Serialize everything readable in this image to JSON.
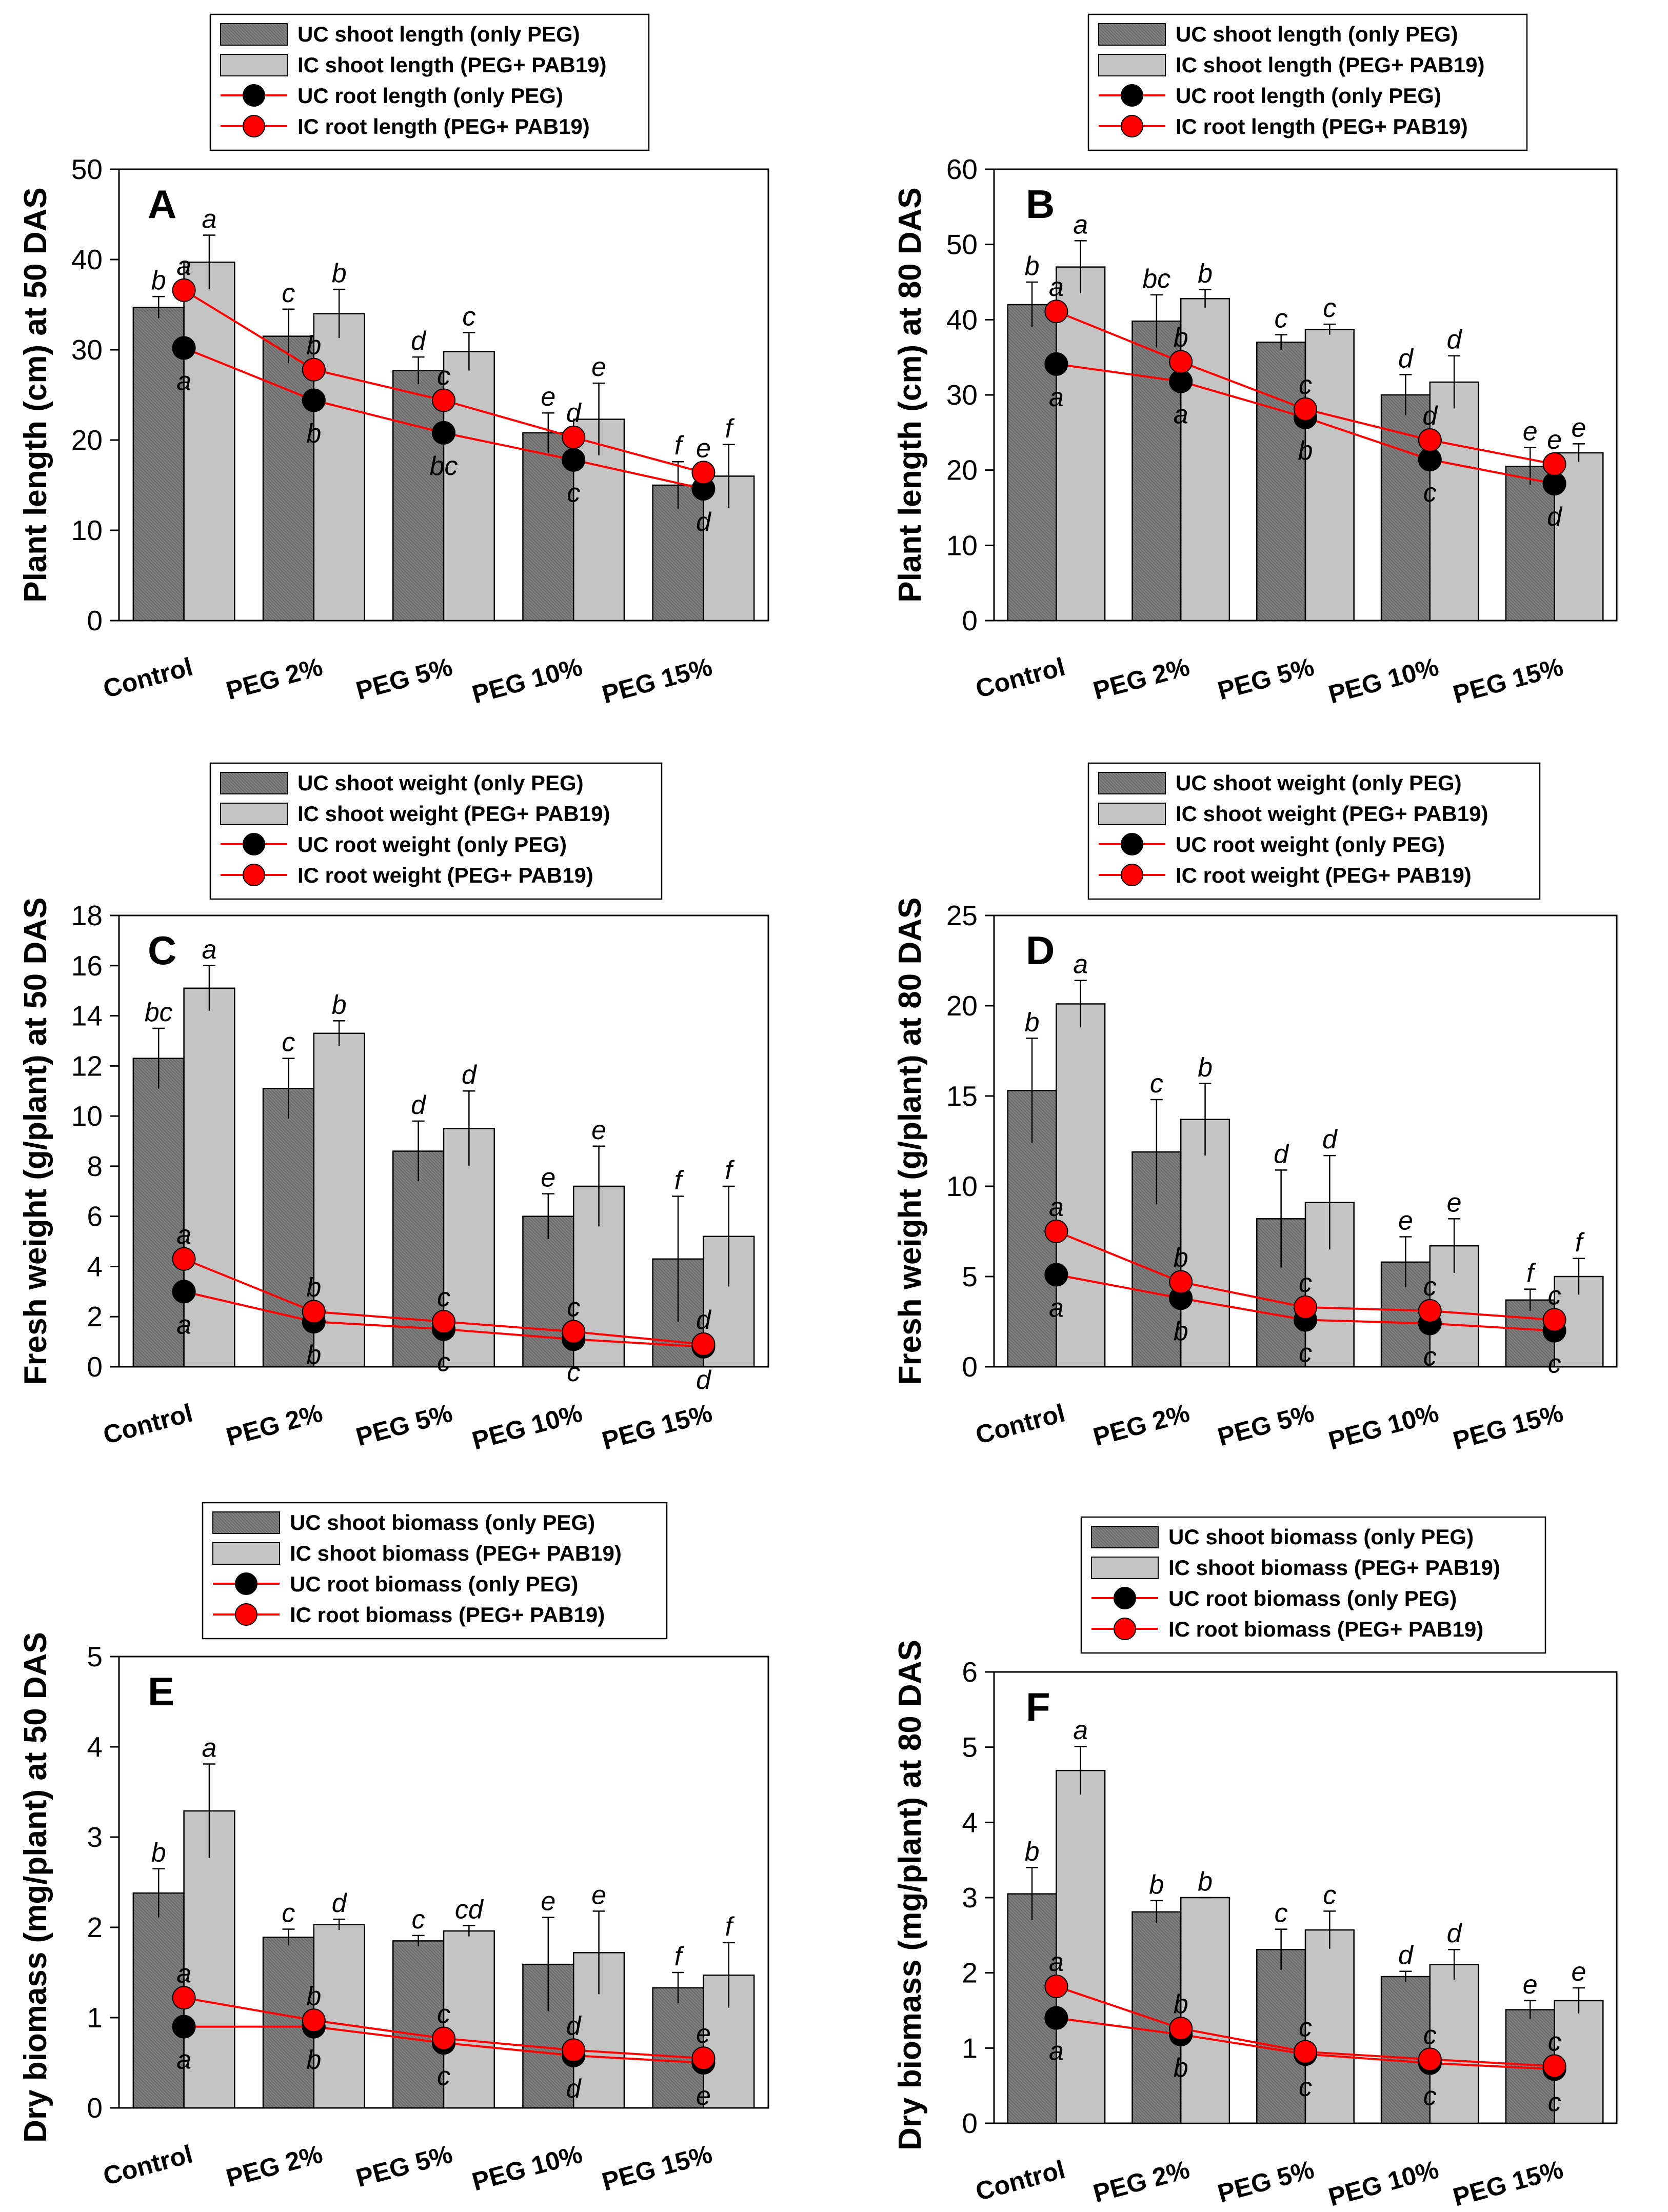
{
  "chart_data": [
    {
      "type": "bar",
      "panel": "A",
      "ylabel": "Plant length (cm) at 50 DAS",
      "ylim": [
        0,
        50
      ],
      "yticks": [
        0,
        10,
        20,
        30,
        40,
        50
      ],
      "categories": [
        "Control",
        "PEG 2%",
        "PEG 5%",
        "PEG 10%",
        "PEG 15%"
      ],
      "legend": [
        "UC shoot length (only PEG)",
        "IC shoot length (PEG+ PAB19)",
        "UC root length (only PEG)",
        "IC root length (PEG+ PAB19)"
      ],
      "series": [
        {
          "name": "UC shoot length (only PEG)",
          "kind": "bar",
          "color": "#7a7a7a",
          "values": [
            34.7,
            31.5,
            27.7,
            20.8,
            15.0
          ],
          "errors": [
            1.2,
            3.0,
            1.5,
            2.2,
            2.6
          ],
          "letters": [
            "b",
            "c",
            "d",
            "e",
            "f"
          ]
        },
        {
          "name": "IC shoot length (PEG+ PAB19)",
          "kind": "bar",
          "color": "#c4c4c4",
          "values": [
            39.7,
            34.0,
            29.8,
            22.3,
            16.0
          ],
          "errors": [
            3.0,
            2.7,
            2.1,
            4.0,
            3.5
          ],
          "letters": [
            "a",
            "b",
            "c",
            "e",
            "f"
          ]
        },
        {
          "name": "UC root length (only PEG)",
          "kind": "line",
          "color": "#000000",
          "values": [
            30.2,
            24.4,
            20.8,
            17.8,
            14.6
          ],
          "letters": [
            "a",
            "b",
            "bc",
            "c",
            "d"
          ]
        },
        {
          "name": "IC root length (PEG+ PAB19)",
          "kind": "line",
          "color": "#ff0000",
          "values": [
            36.6,
            27.8,
            24.4,
            20.3,
            16.4
          ],
          "letters": [
            "a",
            "b",
            "c",
            "d",
            "e"
          ]
        }
      ]
    },
    {
      "type": "bar",
      "panel": "B",
      "ylabel": "Plant length (cm) at 80 DAS",
      "ylim": [
        0,
        60
      ],
      "yticks": [
        0,
        10,
        20,
        30,
        40,
        50,
        60
      ],
      "categories": [
        "Control",
        "PEG 2%",
        "PEG 5%",
        "PEG 10%",
        "PEG 15%"
      ],
      "legend": [
        "UC shoot length (only PEG)",
        "IC shoot length (PEG+ PAB19)",
        "UC root length (only PEG)",
        "IC root length (PEG+ PAB19)"
      ],
      "series": [
        {
          "name": "UC shoot length (only PEG)",
          "kind": "bar",
          "color": "#7a7a7a",
          "values": [
            42.0,
            39.8,
            37.0,
            30.0,
            20.5
          ],
          "errors": [
            3.0,
            3.5,
            1.0,
            2.7,
            2.5
          ],
          "letters": [
            "b",
            "bc",
            "c",
            "d",
            "e"
          ]
        },
        {
          "name": "IC shoot length (PEG+ PAB19)",
          "kind": "bar",
          "color": "#c4c4c4",
          "values": [
            47.0,
            42.8,
            38.7,
            31.7,
            22.3
          ],
          "errors": [
            3.5,
            1.2,
            0.7,
            3.5,
            1.2
          ],
          "letters": [
            "a",
            "b",
            "c",
            "d",
            "e"
          ]
        },
        {
          "name": "UC root length (only PEG)",
          "kind": "line",
          "color": "#000000",
          "values": [
            34.1,
            31.8,
            27.0,
            21.4,
            18.2
          ],
          "letters": [
            "a",
            "a",
            "b",
            "c",
            "d"
          ]
        },
        {
          "name": "IC root length (PEG+ PAB19)",
          "kind": "line",
          "color": "#ff0000",
          "values": [
            41.1,
            34.4,
            28.1,
            24.0,
            20.8
          ],
          "letters": [
            "a",
            "b",
            "c",
            "d",
            "e"
          ]
        }
      ]
    },
    {
      "type": "bar",
      "panel": "C",
      "ylabel": "Fresh weight (g/plant) at 50 DAS",
      "ylim": [
        0,
        18
      ],
      "yticks": [
        0,
        2,
        4,
        6,
        8,
        10,
        12,
        14,
        16,
        18
      ],
      "categories": [
        "Control",
        "PEG 2%",
        "PEG 5%",
        "PEG 10%",
        "PEG 15%"
      ],
      "legend": [
        "UC shoot weight (only PEG)",
        "IC shoot weight (PEG+ PAB19)",
        "UC root weight (only PEG)",
        "IC root weight (PEG+ PAB19)"
      ],
      "series": [
        {
          "name": "UC shoot weight (only PEG)",
          "kind": "bar",
          "color": "#7a7a7a",
          "values": [
            12.3,
            11.1,
            8.6,
            6.0,
            4.3
          ],
          "errors": [
            1.2,
            1.2,
            1.2,
            0.9,
            2.5
          ],
          "letters": [
            "bc",
            "c",
            "d",
            "e",
            "f"
          ]
        },
        {
          "name": "IC shoot weight (PEG+ PAB19)",
          "kind": "bar",
          "color": "#c4c4c4",
          "values": [
            15.1,
            13.3,
            9.5,
            7.2,
            5.2
          ],
          "errors": [
            0.9,
            0.5,
            1.5,
            1.6,
            2.0
          ],
          "letters": [
            "a",
            "b",
            "d",
            "e",
            "f"
          ]
        },
        {
          "name": "UC root weight (only PEG)",
          "kind": "line",
          "color": "#000000",
          "values": [
            3.0,
            1.8,
            1.5,
            1.1,
            0.8
          ],
          "letters": [
            "a",
            "b",
            "c",
            "c",
            "d"
          ]
        },
        {
          "name": "IC root weight (PEG+ PAB19)",
          "kind": "line",
          "color": "#ff0000",
          "values": [
            4.3,
            2.2,
            1.8,
            1.4,
            0.9
          ],
          "letters": [
            "a",
            "b",
            "c",
            "c",
            "d"
          ]
        }
      ]
    },
    {
      "type": "bar",
      "panel": "D",
      "ylabel": "Fresh weight (g/plant) at 80 DAS",
      "ylim": [
        0,
        25
      ],
      "yticks": [
        0,
        5,
        10,
        15,
        20,
        25
      ],
      "categories": [
        "Control",
        "PEG 2%",
        "PEG 5%",
        "PEG 10%",
        "PEG 15%"
      ],
      "legend": [
        "UC shoot weight (only PEG)",
        "IC shoot weight (PEG+ PAB19)",
        "UC root weight (only PEG)",
        "IC root weight (PEG+ PAB19)"
      ],
      "series": [
        {
          "name": "UC shoot weight (only PEG)",
          "kind": "bar",
          "color": "#7a7a7a",
          "values": [
            15.3,
            11.9,
            8.2,
            5.8,
            3.7
          ],
          "errors": [
            2.9,
            2.9,
            2.7,
            1.4,
            0.6
          ],
          "letters": [
            "b",
            "c",
            "d",
            "e",
            "f"
          ]
        },
        {
          "name": "IC shoot weight (PEG+ PAB19)",
          "kind": "bar",
          "color": "#c4c4c4",
          "values": [
            20.1,
            13.7,
            9.1,
            6.7,
            5.0
          ],
          "errors": [
            1.3,
            2.0,
            2.6,
            1.5,
            1.0
          ],
          "letters": [
            "a",
            "b",
            "d",
            "e",
            "f"
          ]
        },
        {
          "name": "UC root weight (only PEG)",
          "kind": "line",
          "color": "#000000",
          "values": [
            5.1,
            3.8,
            2.6,
            2.4,
            2.0
          ],
          "letters": [
            "a",
            "b",
            "c",
            "c",
            "c"
          ]
        },
        {
          "name": "IC root weight (PEG+ PAB19)",
          "kind": "line",
          "color": "#ff0000",
          "values": [
            7.5,
            4.7,
            3.3,
            3.1,
            2.6
          ],
          "letters": [
            "a",
            "b",
            "c",
            "c",
            "c"
          ]
        }
      ]
    },
    {
      "type": "bar",
      "panel": "E",
      "ylabel": "Dry biomass (mg/plant) at 50 DAS",
      "ylim": [
        0,
        5
      ],
      "yticks": [
        0,
        1,
        2,
        3,
        4,
        5
      ],
      "categories": [
        "Control",
        "PEG 2%",
        "PEG 5%",
        "PEG 10%",
        "PEG 15%"
      ],
      "legend": [
        "UC shoot biomass (only PEG)",
        "IC shoot biomass (PEG+ PAB19)",
        "UC root biomass (only PEG)",
        "IC root biomass (PEG+ PAB19)"
      ],
      "series": [
        {
          "name": "UC shoot biomass (only PEG)",
          "kind": "bar",
          "color": "#7a7a7a",
          "values": [
            2.38,
            1.89,
            1.85,
            1.59,
            1.33
          ],
          "errors": [
            0.27,
            0.09,
            0.06,
            0.52,
            0.17
          ],
          "letters": [
            "b",
            "c",
            "c",
            "e",
            "f"
          ]
        },
        {
          "name": "IC shoot biomass (PEG+ PAB19)",
          "kind": "bar",
          "color": "#c4c4c4",
          "values": [
            3.29,
            2.03,
            1.96,
            1.72,
            1.47
          ],
          "errors": [
            0.52,
            0.06,
            0.06,
            0.46,
            0.36
          ],
          "letters": [
            "a",
            "d",
            "cd",
            "e",
            "f"
          ]
        },
        {
          "name": "UC root biomass (only PEG)",
          "kind": "line",
          "color": "#000000",
          "values": [
            0.9,
            0.9,
            0.72,
            0.58,
            0.5
          ],
          "letters": [
            "a",
            "b",
            "c",
            "d",
            "e"
          ]
        },
        {
          "name": "IC root biomass (PEG+ PAB19)",
          "kind": "line",
          "color": "#ff0000",
          "values": [
            1.22,
            0.97,
            0.77,
            0.64,
            0.55
          ],
          "letters": [
            "a",
            "b",
            "c",
            "d",
            "e"
          ]
        }
      ]
    },
    {
      "type": "bar",
      "panel": "F",
      "ylabel": "Dry biomass (mg/plant) at 80 DAS",
      "ylim": [
        0,
        6
      ],
      "yticks": [
        0,
        1,
        2,
        3,
        4,
        5,
        6
      ],
      "categories": [
        "Control",
        "PEG 2%",
        "PEG 5%",
        "PEG 10%",
        "PEG 15%"
      ],
      "legend": [
        "UC shoot biomass (only PEG)",
        "IC shoot biomass (PEG+ PAB19)",
        "UC root biomass (only PEG)",
        "IC root biomass (PEG+ PAB19)"
      ],
      "series": [
        {
          "name": "UC shoot biomass (only PEG)",
          "kind": "bar",
          "color": "#7a7a7a",
          "values": [
            3.05,
            2.81,
            2.31,
            1.95,
            1.51
          ],
          "errors": [
            0.35,
            0.15,
            0.27,
            0.07,
            0.12
          ],
          "letters": [
            "b",
            "b",
            "c",
            "d",
            "e"
          ]
        },
        {
          "name": "IC shoot biomass (PEG+ PAB19)",
          "kind": "bar",
          "color": "#c4c4c4",
          "values": [
            4.69,
            3.0,
            2.57,
            2.11,
            1.63
          ],
          "errors": [
            0.32,
            0.0,
            0.25,
            0.2,
            0.17
          ],
          "letters": [
            "a",
            "b",
            "c",
            "d",
            "e"
          ]
        },
        {
          "name": "UC root biomass (only PEG)",
          "kind": "line",
          "color": "#000000",
          "values": [
            1.4,
            1.18,
            0.92,
            0.8,
            0.72
          ],
          "letters": [
            "a",
            "b",
            "c",
            "c",
            "c"
          ]
        },
        {
          "name": "IC root biomass (PEG+ PAB19)",
          "kind": "line",
          "color": "#ff0000",
          "values": [
            1.82,
            1.26,
            0.95,
            0.85,
            0.76
          ],
          "letters": [
            "a",
            "b",
            "c",
            "c",
            "c"
          ]
        }
      ]
    }
  ]
}
